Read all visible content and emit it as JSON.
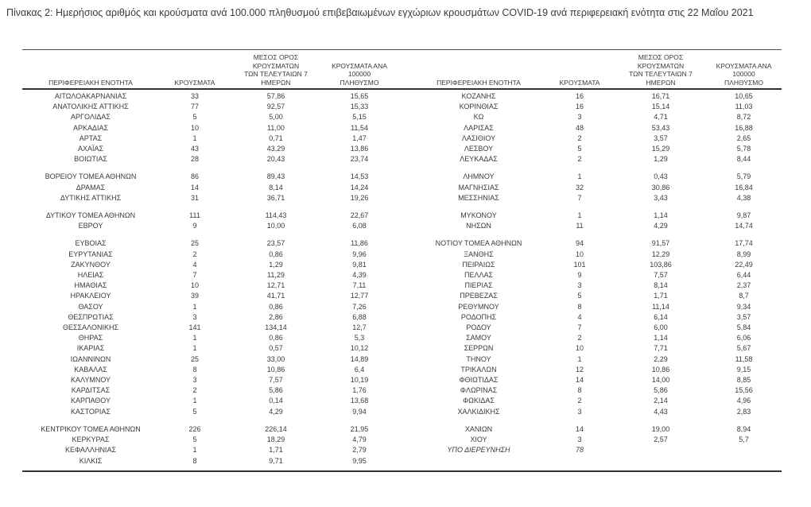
{
  "title": "Πίνακας 2:  Ημερήσιος αριθμός και κρούσματα ανά 100.000 πληθυσμού επιβεβαιωμένων εγχώριων κρουσμάτων COVID-19 ανά περιφερειακή ενότητα στις 22 Μαΐου 2021",
  "colors": {
    "text": "#3a3a3a",
    "border": "#333333",
    "background": "#ffffff"
  },
  "table": {
    "headers": {
      "region": "ΠΕΡΙΦΕΡΕΙΑΚΗ ΕΝΟΤΗΤΑ",
      "cases": "ΚΡΟΥΣΜΑΤΑ",
      "avg7_lines": [
        "ΜΕΣΟΣ ΟΡΟΣ ΚΡΟΥΣΜΑΤΩΝ",
        "ΤΩΝ ΤΕΛΕΥΤΑΙΩΝ 7",
        "ΗΜΕΡΩΝ"
      ],
      "per100k_lines": [
        "ΚΡΟΥΣΜΑΤΑ ΑΝΑ 100000",
        "ΠΛΗΘΥΣΜΟ"
      ]
    },
    "rows": [
      {
        "left": {
          "region": "ΑΙΤΩΛΟΑΚΑΡΝΑΝΙΑΣ",
          "cases": "33",
          "avg7": "57,86",
          "per100k": "15,65"
        },
        "right": {
          "region": "ΚΟΖΑΝΗΣ",
          "cases": "16",
          "avg7": "16,71",
          "per100k": "10,65"
        }
      },
      {
        "left": {
          "region": "ΑΝΑΤΟΛΙΚΗΣ ΑΤΤΙΚΗΣ",
          "cases": "77",
          "avg7": "92,57",
          "per100k": "15,33"
        },
        "right": {
          "region": "ΚΟΡΙΝΘΙΑΣ",
          "cases": "16",
          "avg7": "15,14",
          "per100k": "11,03"
        }
      },
      {
        "left": {
          "region": "ΑΡΓΟΛΙΔΑΣ",
          "cases": "5",
          "avg7": "5,00",
          "per100k": "5,15"
        },
        "right": {
          "region": "ΚΩ",
          "cases": "3",
          "avg7": "4,71",
          "per100k": "8,72"
        }
      },
      {
        "left": {
          "region": "ΑΡΚΑΔΙΑΣ",
          "cases": "10",
          "avg7": "11,00",
          "per100k": "11,54"
        },
        "right": {
          "region": "ΛΑΡΙΣΑΣ",
          "cases": "48",
          "avg7": "53,43",
          "per100k": "16,88"
        }
      },
      {
        "left": {
          "region": "ΑΡΤΑΣ",
          "cases": "1",
          "avg7": "0,71",
          "per100k": "1,47"
        },
        "right": {
          "region": "ΛΑΣΙΘΙΟΥ",
          "cases": "2",
          "avg7": "3,57",
          "per100k": "2,65"
        }
      },
      {
        "left": {
          "region": "ΑΧΑΪΑΣ",
          "cases": "43",
          "avg7": "43,29",
          "per100k": "13,86"
        },
        "right": {
          "region": "ΛΕΣΒΟΥ",
          "cases": "5",
          "avg7": "15,29",
          "per100k": "5,78"
        }
      },
      {
        "left": {
          "region": "ΒΟΙΩΤΙΑΣ",
          "cases": "28",
          "avg7": "20,43",
          "per100k": "23,74"
        },
        "right": {
          "region": "ΛΕΥΚΑΔΑΣ",
          "cases": "2",
          "avg7": "1,29",
          "per100k": "8,44"
        }
      },
      {
        "gap": true,
        "left": {
          "region": "ΒΟΡΕΙΟΥ ΤΟΜΕΑ ΑΘΗΝΩΝ",
          "cases": "86",
          "avg7": "89,43",
          "per100k": "14,53"
        },
        "right": {
          "region": "ΛΗΜΝΟΥ",
          "cases": "1",
          "avg7": "0,43",
          "per100k": "5,79"
        }
      },
      {
        "left": {
          "region": "ΔΡΑΜΑΣ",
          "cases": "14",
          "avg7": "8,14",
          "per100k": "14,24"
        },
        "right": {
          "region": "ΜΑΓΝΗΣΙΑΣ",
          "cases": "32",
          "avg7": "30,86",
          "per100k": "16,84"
        }
      },
      {
        "left": {
          "region": "ΔΥΤΙΚΗΣ ΑΤΤΙΚΗΣ",
          "cases": "31",
          "avg7": "36,71",
          "per100k": "19,26"
        },
        "right": {
          "region": "ΜΕΣΣΗΝΙΑΣ",
          "cases": "7",
          "avg7": "3,43",
          "per100k": "4,38"
        }
      },
      {
        "gap": true,
        "left": {
          "region": "ΔΥΤΙΚΟΥ ΤΟΜΕΑ ΑΘΗΝΩΝ",
          "cases": "111",
          "avg7": "114,43",
          "per100k": "22,67"
        },
        "right": {
          "region": "ΜΥΚΟΝΟΥ",
          "cases": "1",
          "avg7": "1,14",
          "per100k": "9,87"
        }
      },
      {
        "left": {
          "region": "ΕΒΡΟΥ",
          "cases": "9",
          "avg7": "10,00",
          "per100k": "6,08"
        },
        "right": {
          "region": "ΝΗΣΩΝ",
          "cases": "11",
          "avg7": "4,29",
          "per100k": "14,74"
        }
      },
      {
        "gap": true,
        "left": {
          "region": "ΕΥΒΟΙΑΣ",
          "cases": "25",
          "avg7": "23,57",
          "per100k": "11,86"
        },
        "right": {
          "region": "ΝΟΤΙΟΥ ΤΟΜΕΑ ΑΘΗΝΩΝ",
          "cases": "94",
          "avg7": "91,57",
          "per100k": "17,74"
        }
      },
      {
        "left": {
          "region": "ΕΥΡΥΤΑΝΙΑΣ",
          "cases": "2",
          "avg7": "0,86",
          "per100k": "9,96"
        },
        "right": {
          "region": "ΞΑΝΘΗΣ",
          "cases": "10",
          "avg7": "12,29",
          "per100k": "8,99"
        }
      },
      {
        "left": {
          "region": "ΖΑΚΥΝΘΟΥ",
          "cases": "4",
          "avg7": "1,29",
          "per100k": "9,81"
        },
        "right": {
          "region": "ΠΕΙΡΑΙΩΣ",
          "cases": "101",
          "avg7": "103,86",
          "per100k": "22,49"
        }
      },
      {
        "left": {
          "region": "ΗΛΕΙΑΣ",
          "cases": "7",
          "avg7": "11,29",
          "per100k": "4,39"
        },
        "right": {
          "region": "ΠΕΛΛΑΣ",
          "cases": "9",
          "avg7": "7,57",
          "per100k": "6,44"
        }
      },
      {
        "left": {
          "region": "ΗΜΑΘΙΑΣ",
          "cases": "10",
          "avg7": "12,71",
          "per100k": "7,11"
        },
        "right": {
          "region": "ΠΙΕΡΙΑΣ",
          "cases": "3",
          "avg7": "8,14",
          "per100k": "2,37"
        }
      },
      {
        "left": {
          "region": "ΗΡΑΚΛΕΙΟΥ",
          "cases": "39",
          "avg7": "41,71",
          "per100k": "12,77"
        },
        "right": {
          "region": "ΠΡΕΒΕΖΑΣ",
          "cases": "5",
          "avg7": "1,71",
          "per100k": "8,7"
        }
      },
      {
        "left": {
          "region": "ΘΑΣΟΥ",
          "cases": "1",
          "avg7": "0,86",
          "per100k": "7,26"
        },
        "right": {
          "region": "ΡΕΘΥΜΝΟΥ",
          "cases": "8",
          "avg7": "11,14",
          "per100k": "9,34"
        }
      },
      {
        "left": {
          "region": "ΘΕΣΠΡΩΤΙΑΣ",
          "cases": "3",
          "avg7": "2,86",
          "per100k": "6,88"
        },
        "right": {
          "region": "ΡΟΔΟΠΗΣ",
          "cases": "4",
          "avg7": "6,14",
          "per100k": "3,57"
        }
      },
      {
        "left": {
          "region": "ΘΕΣΣΑΛΟΝΙΚΗΣ",
          "cases": "141",
          "avg7": "134,14",
          "per100k": "12,7"
        },
        "right": {
          "region": "ΡΟΔΟΥ",
          "cases": "7",
          "avg7": "6,00",
          "per100k": "5,84"
        }
      },
      {
        "left": {
          "region": "ΘΗΡΑΣ",
          "cases": "1",
          "avg7": "0,86",
          "per100k": "5,3"
        },
        "right": {
          "region": "ΣΑΜΟΥ",
          "cases": "2",
          "avg7": "1,14",
          "per100k": "6,06"
        }
      },
      {
        "left": {
          "region": "ΙΚΑΡΙΑΣ",
          "cases": "1",
          "avg7": "0,57",
          "per100k": "10,12"
        },
        "right": {
          "region": "ΣΕΡΡΩΝ",
          "cases": "10",
          "avg7": "7,71",
          "per100k": "5,67"
        }
      },
      {
        "left": {
          "region": "ΙΩΑΝΝΙΝΩΝ",
          "cases": "25",
          "avg7": "33,00",
          "per100k": "14,89"
        },
        "right": {
          "region": "ΤΗΝΟΥ",
          "cases": "1",
          "avg7": "2,29",
          "per100k": "11,58"
        }
      },
      {
        "left": {
          "region": "ΚΑΒΑΛΑΣ",
          "cases": "8",
          "avg7": "10,86",
          "per100k": "6,4"
        },
        "right": {
          "region": "ΤΡΙΚΑΛΩΝ",
          "cases": "12",
          "avg7": "10,86",
          "per100k": "9,15"
        }
      },
      {
        "left": {
          "region": "ΚΑΛΥΜΝΟΥ",
          "cases": "3",
          "avg7": "7,57",
          "per100k": "10,19"
        },
        "right": {
          "region": "ΦΘΙΩΤΙΔΑΣ",
          "cases": "14",
          "avg7": "14,00",
          "per100k": "8,85"
        }
      },
      {
        "left": {
          "region": "ΚΑΡΔΙΤΣΑΣ",
          "cases": "2",
          "avg7": "5,86",
          "per100k": "1,76"
        },
        "right": {
          "region": "ΦΛΩΡΙΝΑΣ",
          "cases": "8",
          "avg7": "5,86",
          "per100k": "15,56"
        }
      },
      {
        "left": {
          "region": "ΚΑΡΠΑΘΟΥ",
          "cases": "1",
          "avg7": "0,14",
          "per100k": "13,68"
        },
        "right": {
          "region": "ΦΩΚΙΔΑΣ",
          "cases": "2",
          "avg7": "2,14",
          "per100k": "4,96"
        }
      },
      {
        "left": {
          "region": "ΚΑΣΤΟΡΙΑΣ",
          "cases": "5",
          "avg7": "4,29",
          "per100k": "9,94"
        },
        "right": {
          "region": "ΧΑΛΚΙΔΙΚΗΣ",
          "cases": "3",
          "avg7": "4,43",
          "per100k": "2,83"
        }
      },
      {
        "gap": true,
        "left": {
          "region": "ΚΕΝΤΡΙΚΟΥ ΤΟΜΕΑ ΑΘΗΝΩΝ",
          "cases": "226",
          "avg7": "226,14",
          "per100k": "21,95"
        },
        "right": {
          "region": "ΧΑΝΙΩΝ",
          "cases": "14",
          "avg7": "19,00",
          "per100k": "8,94"
        }
      },
      {
        "left": {
          "region": "ΚΕΡΚΥΡΑΣ",
          "cases": "5",
          "avg7": "18,29",
          "per100k": "4,79"
        },
        "right": {
          "region": "ΧΙΟΥ",
          "cases": "3",
          "avg7": "2,57",
          "per100k": "5,7"
        }
      },
      {
        "right_italic": true,
        "left": {
          "region": "ΚΕΦΑΛΛΗΝΙΑΣ",
          "cases": "1",
          "avg7": "1,71",
          "per100k": "2,79"
        },
        "right": {
          "region": "ΥΠΟ ΔΙΕΡΕΥΝΗΣΗ",
          "cases": "78",
          "avg7": "",
          "per100k": ""
        }
      },
      {
        "left": {
          "region": "ΚΙΛΚΙΣ",
          "cases": "8",
          "avg7": "9,71",
          "per100k": "9,95"
        },
        "right": {
          "region": "",
          "cases": "",
          "avg7": "",
          "per100k": ""
        }
      }
    ]
  }
}
